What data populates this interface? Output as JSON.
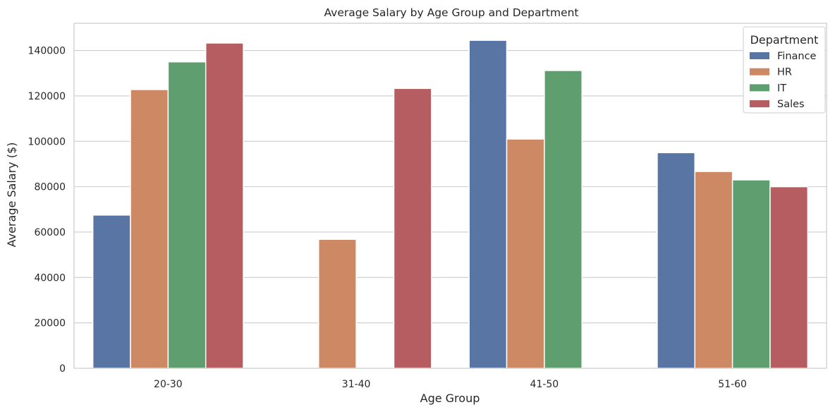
{
  "chart_data": {
    "type": "bar",
    "title": "Average Salary by Age Group and Department",
    "xlabel": "Age Group",
    "ylabel": "Average Salary ($)",
    "categories": [
      "20-30",
      "31-40",
      "41-50",
      "51-60"
    ],
    "ylim": [
      0,
      152000
    ],
    "yticks": [
      0,
      20000,
      40000,
      60000,
      80000,
      100000,
      120000,
      140000
    ],
    "grid": true,
    "legend": {
      "title": "Department",
      "placement": "top-right"
    },
    "series": [
      {
        "name": "Finance",
        "color": "#5875a4",
        "values": [
          67500,
          null,
          144500,
          95000
        ]
      },
      {
        "name": "HR",
        "color": "#cc8963",
        "values": [
          122800,
          56800,
          101000,
          86700
        ]
      },
      {
        "name": "IT",
        "color": "#5f9e6e",
        "values": [
          135000,
          null,
          131200,
          83000
        ]
      },
      {
        "name": "Sales",
        "color": "#b55d60",
        "values": [
          143300,
          123300,
          null,
          80000
        ]
      }
    ]
  }
}
